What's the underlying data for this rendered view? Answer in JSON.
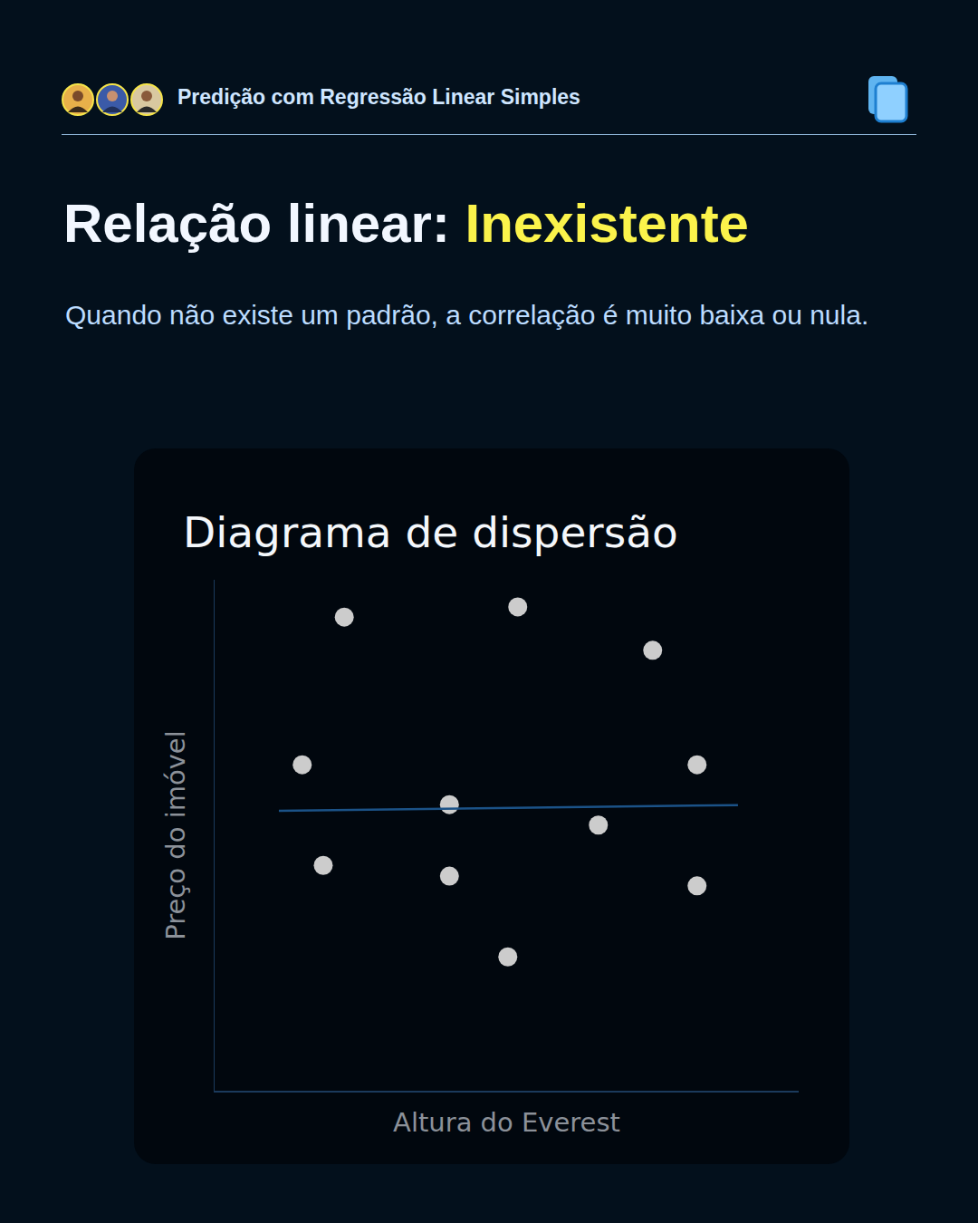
{
  "page": {
    "header": "Predição com Regressão Linear Simples",
    "title": "Relação linear: ",
    "title_highlight": "Inexistente",
    "subtitle": "Quando não existe um padrão, a correlação é muito baixa ou nula."
  },
  "chart_data": {
    "type": "scatter",
    "title": "Diagrama de dispersão",
    "x_label": "Altura do Everest",
    "y_label": "Preço do imóvel",
    "xlim": [
      0,
      10
    ],
    "ylim": [
      0,
      10
    ],
    "xticks": [],
    "yticks": [],
    "grid": false,
    "tick_labels": false,
    "series": [
      {
        "type": "scatter",
        "marker": "circle",
        "color": "#cccccc",
        "x": [
          2.22,
          5.19,
          7.5,
          1.5,
          8.26,
          4.02,
          6.57,
          1.86,
          4.02,
          8.26,
          5.02
        ],
        "values": [
          9.27,
          9.47,
          8.62,
          6.38,
          6.38,
          5.6,
          5.2,
          4.41,
          4.2,
          4.01,
          2.62
        ]
      },
      {
        "type": "line",
        "line_style": "solid",
        "color": "#1b5287",
        "x": [
          1.1,
          8.96
        ],
        "values": [
          5.48,
          5.59
        ]
      }
    ]
  }
}
